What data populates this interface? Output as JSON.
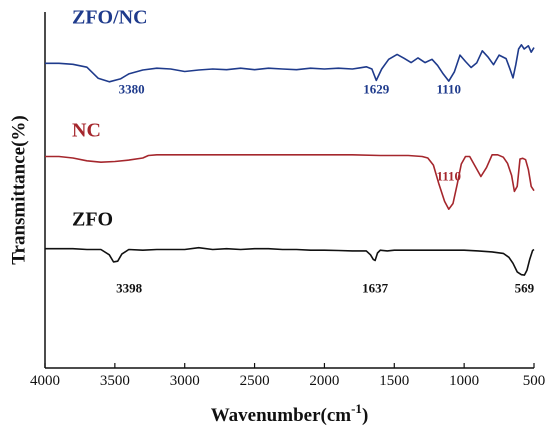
{
  "chart_data": {
    "type": "line",
    "xlabel": "Wavenumber(cm",
    "xlabel_sup": "-1",
    "xlabel_tail": ")",
    "ylabel": "Transmittance(%)",
    "xlim": [
      4000,
      500
    ],
    "x_reversed": true,
    "x_ticks": [
      "4000",
      "3500",
      "3000",
      "2500",
      "2000",
      "1500",
      "1000",
      "500"
    ],
    "y_ticks_shown": false,
    "grid": false,
    "series": [
      {
        "name": "ZFO/NC",
        "color": "#1f3b8c",
        "x": [
          4000,
          3900,
          3800,
          3700,
          3620,
          3540,
          3460,
          3400,
          3300,
          3200,
          3100,
          3000,
          2900,
          2800,
          2700,
          2600,
          2500,
          2400,
          2300,
          2200,
          2100,
          2000,
          1900,
          1800,
          1750,
          1700,
          1660,
          1629,
          1590,
          1540,
          1480,
          1430,
          1380,
          1330,
          1280,
          1230,
          1190,
          1150,
          1110,
          1070,
          1030,
          990,
          950,
          910,
          870,
          830,
          790,
          750,
          700,
          670,
          650,
          630,
          610,
          590,
          570,
          540,
          520,
          500
        ],
        "y": [
          0.856,
          0.856,
          0.853,
          0.845,
          0.814,
          0.804,
          0.812,
          0.826,
          0.837,
          0.842,
          0.84,
          0.833,
          0.837,
          0.84,
          0.838,
          0.842,
          0.838,
          0.842,
          0.84,
          0.838,
          0.842,
          0.84,
          0.842,
          0.84,
          0.843,
          0.846,
          0.84,
          0.808,
          0.84,
          0.867,
          0.881,
          0.87,
          0.858,
          0.871,
          0.858,
          0.867,
          0.85,
          0.826,
          0.806,
          0.832,
          0.879,
          0.861,
          0.844,
          0.857,
          0.891,
          0.874,
          0.852,
          0.879,
          0.869,
          0.838,
          0.815,
          0.852,
          0.896,
          0.908,
          0.896,
          0.905,
          0.887,
          0.9
        ],
        "peak_labels": [
          {
            "text": "3380",
            "x": 3380
          },
          {
            "text": "1629",
            "x": 1629
          },
          {
            "text": "1110",
            "x": 1110
          }
        ]
      },
      {
        "name": "NC",
        "color": "#a5272d",
        "x": [
          4000,
          3900,
          3800,
          3700,
          3600,
          3500,
          3400,
          3300,
          3260,
          3200,
          3100,
          3000,
          2800,
          2600,
          2400,
          2200,
          2000,
          1800,
          1600,
          1400,
          1300,
          1260,
          1220,
          1180,
          1140,
          1110,
          1080,
          1050,
          1020,
          990,
          960,
          920,
          880,
          840,
          800,
          760,
          720,
          690,
          660,
          640,
          620,
          600,
          580,
          560,
          540,
          520,
          500
        ],
        "y": [
          0.594,
          0.594,
          0.59,
          0.582,
          0.578,
          0.58,
          0.584,
          0.59,
          0.597,
          0.599,
          0.599,
          0.599,
          0.599,
          0.599,
          0.599,
          0.599,
          0.599,
          0.599,
          0.597,
          0.597,
          0.594,
          0.59,
          0.57,
          0.516,
          0.468,
          0.446,
          0.462,
          0.516,
          0.573,
          0.594,
          0.594,
          0.566,
          0.538,
          0.563,
          0.599,
          0.599,
          0.592,
          0.575,
          0.541,
          0.496,
          0.51,
          0.587,
          0.589,
          0.585,
          0.557,
          0.51,
          0.498
        ],
        "peak_labels": [
          {
            "text": "1110",
            "x": 1110
          }
        ]
      },
      {
        "name": "ZFO",
        "color": "#111111",
        "x": [
          4000,
          3900,
          3800,
          3700,
          3600,
          3540,
          3510,
          3480,
          3450,
          3400,
          3300,
          3200,
          3100,
          3000,
          2900,
          2800,
          2700,
          2600,
          2500,
          2400,
          2300,
          2200,
          2100,
          2000,
          1900,
          1800,
          1700,
          1670,
          1650,
          1637,
          1620,
          1600,
          1550,
          1500,
          1400,
          1300,
          1200,
          1100,
          1000,
          900,
          800,
          720,
          680,
          650,
          620,
          590,
          569,
          550,
          530,
          510,
          500
        ],
        "y": [
          0.335,
          0.335,
          0.335,
          0.333,
          0.333,
          0.318,
          0.298,
          0.3,
          0.32,
          0.333,
          0.331,
          0.333,
          0.333,
          0.333,
          0.338,
          0.333,
          0.335,
          0.333,
          0.335,
          0.335,
          0.333,
          0.333,
          0.331,
          0.331,
          0.33,
          0.329,
          0.329,
          0.318,
          0.305,
          0.302,
          0.323,
          0.331,
          0.329,
          0.331,
          0.331,
          0.331,
          0.331,
          0.331,
          0.331,
          0.329,
          0.326,
          0.322,
          0.311,
          0.294,
          0.27,
          0.262,
          0.261,
          0.275,
          0.306,
          0.33,
          0.333
        ],
        "peak_labels": [
          {
            "text": "3398",
            "x": 3398
          },
          {
            "text": "1637",
            "x": 1637
          },
          {
            "text": "569",
            "x": 569
          }
        ]
      }
    ]
  }
}
